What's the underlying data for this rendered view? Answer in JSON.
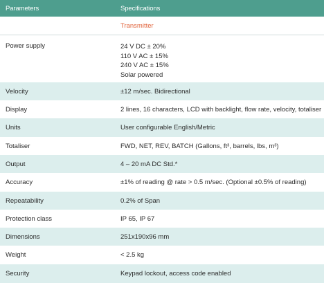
{
  "table": {
    "header": {
      "col1": "Parameters",
      "col2": "Specifications"
    },
    "subheading": "Transmitter",
    "rows": [
      {
        "param": "Power supply",
        "spec": [
          "24 V DC ± 20%",
          "110 V AC ± 15%",
          "240 V AC ± 15%",
          "Solar powered"
        ]
      },
      {
        "param": "Velocity",
        "spec": "±12 m/sec. Bidirectional"
      },
      {
        "param": "Display",
        "spec": "2 lines, 16 characters, LCD with backlight, flow rate, velocity, totaliser"
      },
      {
        "param": "Units",
        "spec": "User configurable English/Metric"
      },
      {
        "param": "Totaliser",
        "spec": "FWD, NET, REV, BATCH (Gallons, ft³, barrels, lbs, m³)"
      },
      {
        "param": "Output",
        "spec": "4 – 20 mA DC Std.*"
      },
      {
        "param": "Accuracy",
        "spec": "±1% of reading @ rate > 0.5 m/sec. (Optional ±0.5% of reading)"
      },
      {
        "param": "Repeatability",
        "spec": "0.2% of Span"
      },
      {
        "param": "Protection class",
        "spec": "IP 65, IP 67"
      },
      {
        "param": "Dimensions",
        "spec": "251x190x96 mm"
      },
      {
        "param": "Weight",
        "spec": "< 2.5 kg"
      },
      {
        "param": "Security",
        "spec": "Keypad lockout, access code enabled"
      }
    ]
  },
  "colors": {
    "header_bg": "#4e9e8e",
    "stripe_bg": "#dceeed",
    "subheading_text": "#e1643c"
  }
}
